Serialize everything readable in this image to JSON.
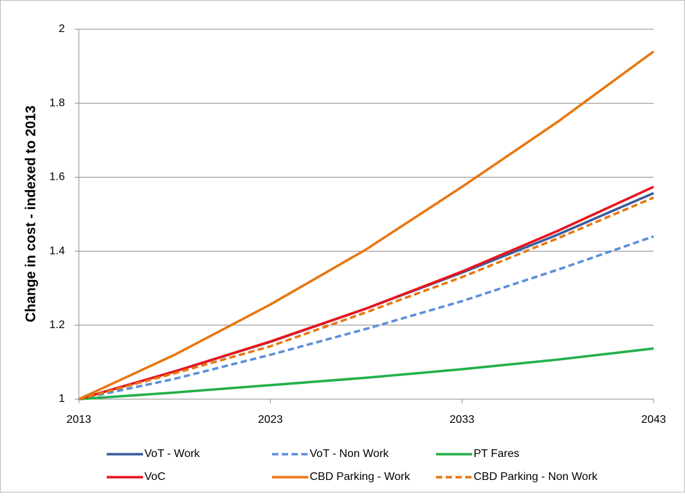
{
  "chart_data": {
    "type": "line",
    "y_label": "Change in cost - indexed to 2013",
    "x": [
      2013,
      2018,
      2023,
      2028,
      2033,
      2038,
      2043
    ],
    "xlim": [
      2013,
      2043
    ],
    "xticks": [
      2013,
      2023,
      2033,
      2043
    ],
    "ylim": [
      1,
      2
    ],
    "yticks": [
      1,
      1.2,
      1.4,
      1.6,
      1.8,
      2
    ],
    "grid": true,
    "legend": "bottom",
    "series": [
      {
        "name": "VoT - Work",
        "color": "#3b5c9c",
        "dash": false,
        "values": [
          1,
          1.075,
          1.155,
          1.245,
          1.342,
          1.445,
          1.557
        ]
      },
      {
        "name": "VoT - Non Work",
        "color": "#5b8fd8",
        "dash": true,
        "values": [
          1,
          1.055,
          1.12,
          1.19,
          1.265,
          1.35,
          1.44
        ]
      },
      {
        "name": "PT Fares",
        "color": "#22b04a",
        "dash": false,
        "values": [
          1,
          1.018,
          1.038,
          1.058,
          1.081,
          1.107,
          1.137
        ]
      },
      {
        "name": "VoC",
        "color": "#e8141c",
        "dash": false,
        "values": [
          1,
          1.075,
          1.156,
          1.245,
          1.345,
          1.455,
          1.574
        ]
      },
      {
        "name": "CBD Parking - Work",
        "color": "#e8760f",
        "dash": false,
        "values": [
          1,
          1.12,
          1.256,
          1.405,
          1.574,
          1.75,
          1.94
        ]
      },
      {
        "name": "CBD Parking - Non Work",
        "color": "#e8760f",
        "dash": true,
        "values": [
          1,
          1.07,
          1.143,
          1.235,
          1.33,
          1.435,
          1.545
        ]
      }
    ]
  }
}
